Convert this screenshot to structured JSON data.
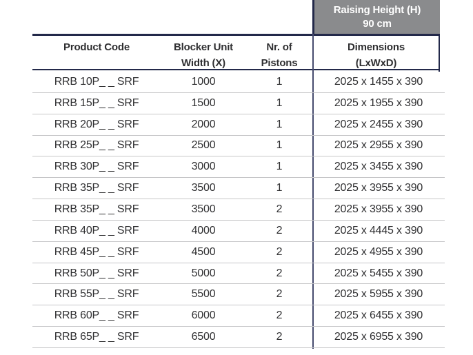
{
  "colors": {
    "navy_rule": "#23294a",
    "gray_banner_bg": "#8a8b8d",
    "banner_text": "#ffffff",
    "row_divider": "#c6c6c8",
    "column_divider": "#464b6e",
    "body_text": "#2f2f31"
  },
  "raising_height_banner": {
    "line1": "Raising Height (H)",
    "line2": "90 cm"
  },
  "table": {
    "columns": [
      {
        "line1": "Product Code",
        "line2": ""
      },
      {
        "line1": "Blocker Unit",
        "line2": "Width (X)"
      },
      {
        "line1": "Nr. of",
        "line2": "Pistons"
      },
      {
        "line1": "Dimensions",
        "line2": "(LxWxD)"
      }
    ],
    "rows": [
      [
        "RRB 10P_ _ SRF",
        "1000",
        "1",
        "2025 x 1455 x 390"
      ],
      [
        "RRB 15P_ _ SRF",
        "1500",
        "1",
        "2025 x 1955 x 390"
      ],
      [
        "RRB 20P_ _ SRF",
        "2000",
        "1",
        "2025 x 2455 x 390"
      ],
      [
        "RRB 25P_ _ SRF",
        "2500",
        "1",
        "2025 x 2955 x 390"
      ],
      [
        "RRB 30P_ _ SRF",
        "3000",
        "1",
        "2025 x 3455 x 390"
      ],
      [
        "RRB 35P_ _ SRF",
        "3500",
        "1",
        "2025 x 3955 x 390"
      ],
      [
        "RRB 35P_ _ SRF",
        "3500",
        "2",
        "2025 x 3955 x 390"
      ],
      [
        "RRB 40P_ _ SRF",
        "4000",
        "2",
        "2025 x 4445 x 390"
      ],
      [
        "RRB 45P_ _ SRF",
        "4500",
        "2",
        "2025 x 4955 x 390"
      ],
      [
        "RRB 50P_ _ SRF",
        "5000",
        "2",
        "2025 x 5455 x 390"
      ],
      [
        "RRB 55P_ _ SRF",
        "5500",
        "2",
        "2025 x 5955 x 390"
      ],
      [
        "RRB 60P_ _ SRF",
        "6000",
        "2",
        "2025 x 6455 x 390"
      ],
      [
        "RRB 65P_ _ SRF",
        "6500",
        "2",
        "2025 x 6955 x 390"
      ]
    ]
  }
}
